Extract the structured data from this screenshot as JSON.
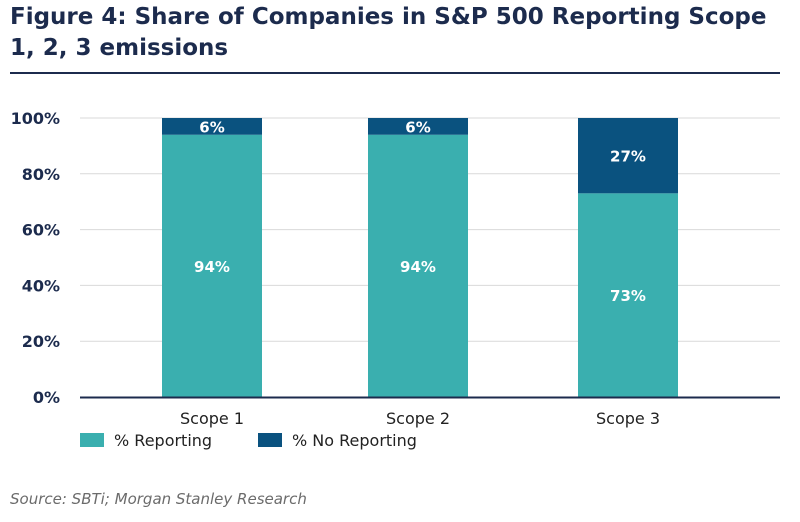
{
  "title": "Figure 4: Share of Companies in S&P 500 Reporting Scope 1, 2, 3 emissions",
  "source": "Source: SBTi; Morgan Stanley Research",
  "colors": {
    "reporting": "#3aafaf",
    "no_reporting": "#0a527f",
    "title": "#1c2b4d",
    "grid": "#d9d9d9",
    "axis": "#1c2b4d"
  },
  "chart_data": {
    "type": "bar",
    "stacked": true,
    "categories": [
      "Scope 1",
      "Scope 2",
      "Scope 3"
    ],
    "series": [
      {
        "name": "% Reporting",
        "values": [
          94,
          94,
          73
        ],
        "labels": [
          "94%",
          "94%",
          "73%"
        ]
      },
      {
        "name": "% No Reporting",
        "values": [
          6,
          6,
          27
        ],
        "labels": [
          "6%",
          "6%",
          "27%"
        ]
      }
    ],
    "yticks": [
      "0%",
      "20%",
      "40%",
      "60%",
      "80%",
      "100%"
    ],
    "ylim": [
      0,
      100
    ],
    "grid": true,
    "legend": "bottom-left"
  }
}
